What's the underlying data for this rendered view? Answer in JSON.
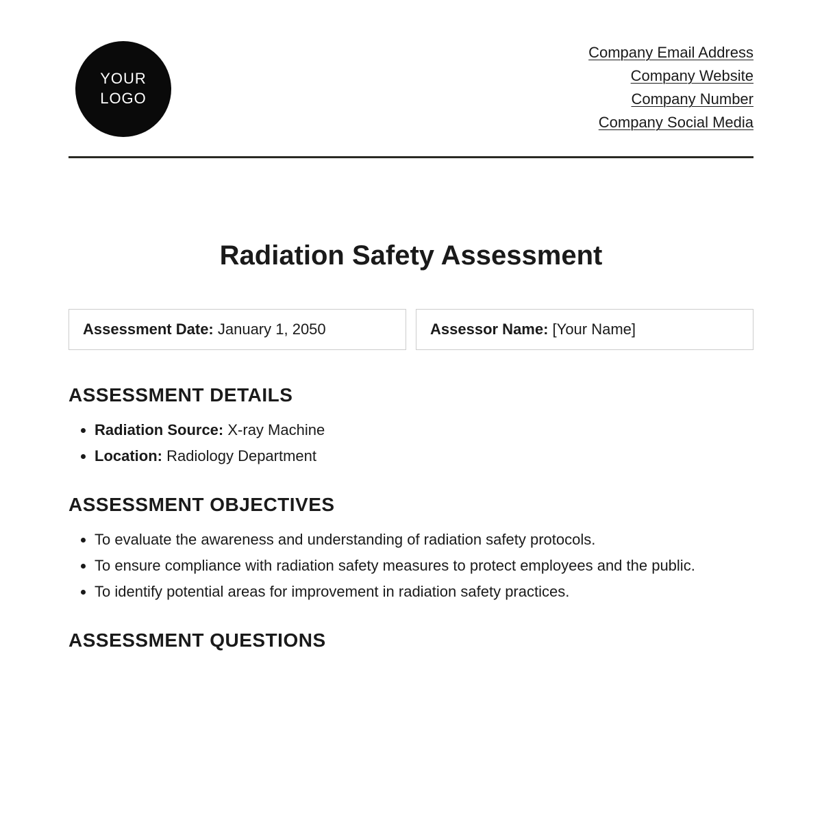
{
  "header": {
    "logo_line1": "YOUR",
    "logo_line2": "LOGO",
    "company_lines": [
      "Company Email Address",
      "Company Website",
      "Company Number",
      "Company Social Media"
    ]
  },
  "title": "Radiation Safety Assessment",
  "info_boxes": {
    "date_label": "Assessment Date:",
    "date_value": " January 1, 2050",
    "assessor_label": "Assessor Name:",
    "assessor_value": " [Your Name]"
  },
  "sections": {
    "details_heading": "ASSESSMENT DETAILS",
    "details": [
      {
        "label": "Radiation Source:",
        "value": " X-ray Machine"
      },
      {
        "label": "Location:",
        "value": " Radiology Department"
      }
    ],
    "objectives_heading": "ASSESSMENT OBJECTIVES",
    "objectives": [
      "To evaluate the awareness and understanding of radiation safety protocols.",
      "To ensure compliance with radiation safety measures to protect employees and the public.",
      "To identify potential areas for improvement in radiation safety practices."
    ],
    "questions_heading": "ASSESSMENT QUESTIONS"
  },
  "colors": {
    "background": "#ffffff",
    "text": "#1a1a1a",
    "logo_bg": "#0a0a0a",
    "logo_text": "#ffffff",
    "divider": "#2a2a24",
    "box_border": "#cccccc"
  }
}
